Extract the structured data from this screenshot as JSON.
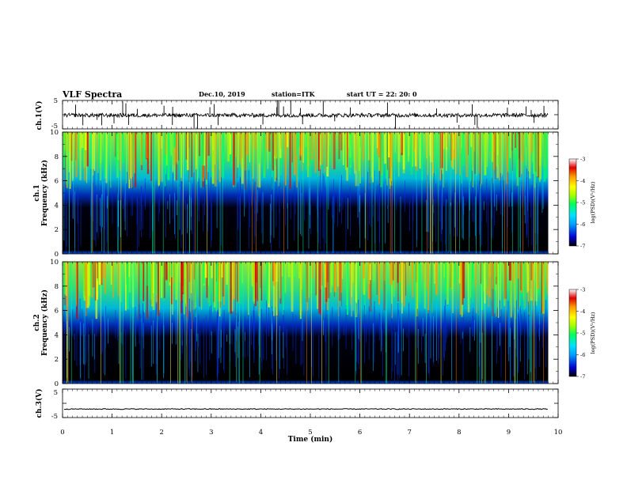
{
  "header": {
    "title": "VLF Spectra",
    "date": "Dec.10, 2019",
    "station": "station=ITK",
    "start": "start  UT =   22: 20: 0"
  },
  "chart_data": [
    {
      "id": "ch1-waveform",
      "type": "line",
      "ylabel": "ch.1(V)",
      "ylim": [
        -5,
        5
      ],
      "yticks": [
        -5,
        5
      ],
      "xlim": [
        0,
        10
      ],
      "note": "broadband waveform, baseline near 0 V with impulsive spikes"
    },
    {
      "id": "ch1-spectrogram",
      "type": "heatmap",
      "ylabel_lines": [
        "ch.1",
        "Frequency (kHz)"
      ],
      "ylim": [
        0,
        10
      ],
      "yticks": [
        0,
        2,
        4,
        6,
        8,
        10
      ],
      "xlim": [
        0,
        10
      ],
      "data_end_min": 9.8,
      "colorbar": {
        "label": "log(PSD)(V²/Hz)",
        "ticks": [
          -7,
          -6,
          -5,
          -4,
          -3
        ],
        "range": [
          -7,
          -3
        ]
      }
    },
    {
      "id": "ch2-spectrogram",
      "type": "heatmap",
      "ylabel_lines": [
        "ch.2",
        "Frequency (kHz)"
      ],
      "ylim": [
        0,
        10
      ],
      "yticks": [
        0,
        2,
        4,
        6,
        8,
        10
      ],
      "xlim": [
        0,
        10
      ],
      "data_end_min": 9.8,
      "colorbar": {
        "label": "log(PSD)(V²/Hz)",
        "ticks": [
          -7,
          -6,
          -5,
          -4,
          -3
        ],
        "range": [
          -7,
          -3
        ]
      }
    },
    {
      "id": "ch3-waveform",
      "type": "line",
      "ylabel": "ch.3(V)",
      "ylim": [
        -5,
        5
      ],
      "yticks": [
        -5,
        5
      ],
      "xlim": [
        0,
        10
      ],
      "note": "flat line near -2 V"
    }
  ],
  "xaxis": {
    "label": "Time (min)",
    "ticks": [
      0,
      1,
      2,
      3,
      4,
      5,
      6,
      7,
      8,
      9,
      10
    ]
  },
  "colors": {
    "colormap": [
      "#000000",
      "#0000d0",
      "#00a0ff",
      "#00e0ff",
      "#00ff60",
      "#a0ff00",
      "#ffff00",
      "#ff9900",
      "#e00000",
      "#ffffff"
    ]
  }
}
